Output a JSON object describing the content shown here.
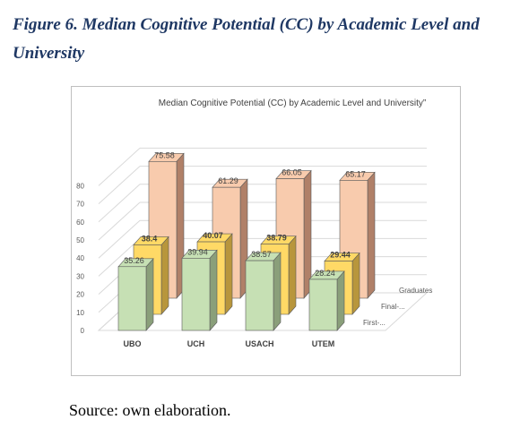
{
  "figure": {
    "caption": "Figure 6. Median Cognitive Potential (CC) by Academic Level and University",
    "source": "Source: own elaboration."
  },
  "chart_data": {
    "type": "bar",
    "subtype": "3d-column",
    "title": "Median Cognitive Potential (CC) by Academic Level and University”",
    "categories": [
      "UBO",
      "UCH",
      "USACH",
      "UTEM"
    ],
    "series": [
      {
        "name": "First-...",
        "values": [
          35.26,
          39.94,
          38.57,
          28.24
        ],
        "color": "#c6e0b4",
        "side_color": "#8a9f7a"
      },
      {
        "name": "Final-...",
        "values": [
          38.4,
          40.07,
          38.79,
          29.44
        ],
        "color": "#ffd966",
        "side_color": "#b8963c"
      },
      {
        "name": "Graduates",
        "values": [
          75.58,
          61.29,
          66.05,
          65.17
        ],
        "color": "#f8cbad",
        "side_color": "#b08068"
      }
    ],
    "y_ticks": [
      "0",
      "10",
      "20",
      "30",
      "40",
      "50",
      "60",
      "70",
      "80"
    ],
    "ylim": [
      0,
      80
    ],
    "grid": true,
    "legend": "depth-axis-right"
  }
}
